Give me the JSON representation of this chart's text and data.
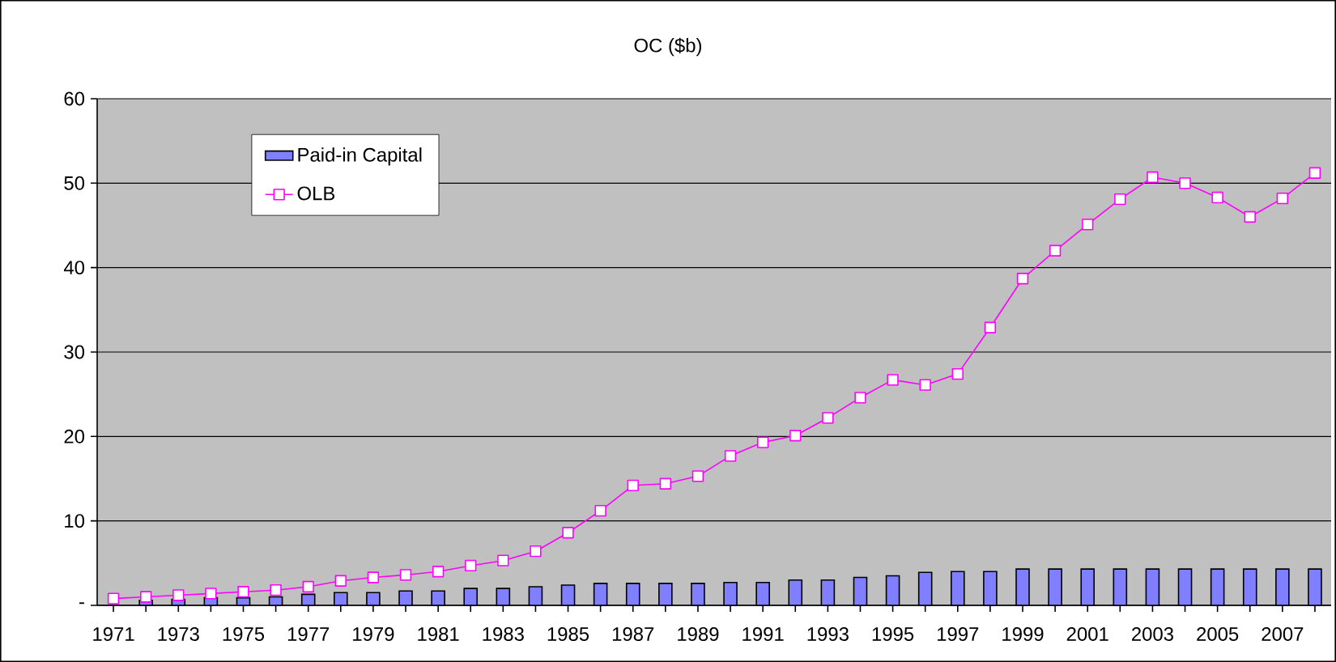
{
  "chart_data": {
    "type": "bar",
    "title": "OC ($b)",
    "categories": [
      "1971",
      null,
      "1973",
      null,
      "1975",
      null,
      "1977",
      null,
      "1979",
      null,
      "1981",
      null,
      "1983",
      null,
      "1985",
      null,
      "1987",
      null,
      "1989",
      null,
      "1991",
      null,
      "1993",
      null,
      "1995",
      null,
      "1997",
      null,
      "1999",
      null,
      "2001",
      null,
      "2003",
      null,
      "2005",
      null,
      "2007",
      null
    ],
    "series": [
      {
        "name": "Paid-in Capital",
        "color": "#7f7fff",
        "values": [
          null,
          0.6,
          0.7,
          0.9,
          0.9,
          1.0,
          1.3,
          1.5,
          1.5,
          1.7,
          1.7,
          2.0,
          2.0,
          2.2,
          2.4,
          2.6,
          2.6,
          2.6,
          2.6,
          2.7,
          2.7,
          3.0,
          3.0,
          3.3,
          3.5,
          3.9,
          4.0,
          4.0,
          4.3,
          4.3,
          4.3,
          4.3,
          4.3,
          4.3,
          4.3,
          4.3,
          4.3,
          4.3
        ]
      },
      {
        "name": "OLB",
        "type": "line",
        "color": "#ff00ff",
        "marker": "square",
        "values": [
          0.8,
          1.0,
          1.2,
          1.4,
          1.6,
          1.8,
          2.2,
          2.9,
          3.3,
          3.6,
          4.0,
          4.7,
          5.3,
          6.4,
          8.6,
          11.2,
          14.2,
          14.4,
          15.3,
          17.7,
          19.3,
          20.1,
          22.2,
          24.6,
          26.7,
          26.1,
          27.4,
          32.9,
          38.7,
          42.0,
          45.1,
          48.1,
          50.7,
          50.0,
          48.3,
          46.0,
          48.2,
          51.2
        ]
      }
    ],
    "ylim": [
      0,
      60
    ],
    "yticks": [
      {
        "value": 0,
        "label": "-"
      },
      10,
      20,
      30,
      40,
      50,
      60
    ],
    "grid": "y",
    "legend": "top left"
  }
}
